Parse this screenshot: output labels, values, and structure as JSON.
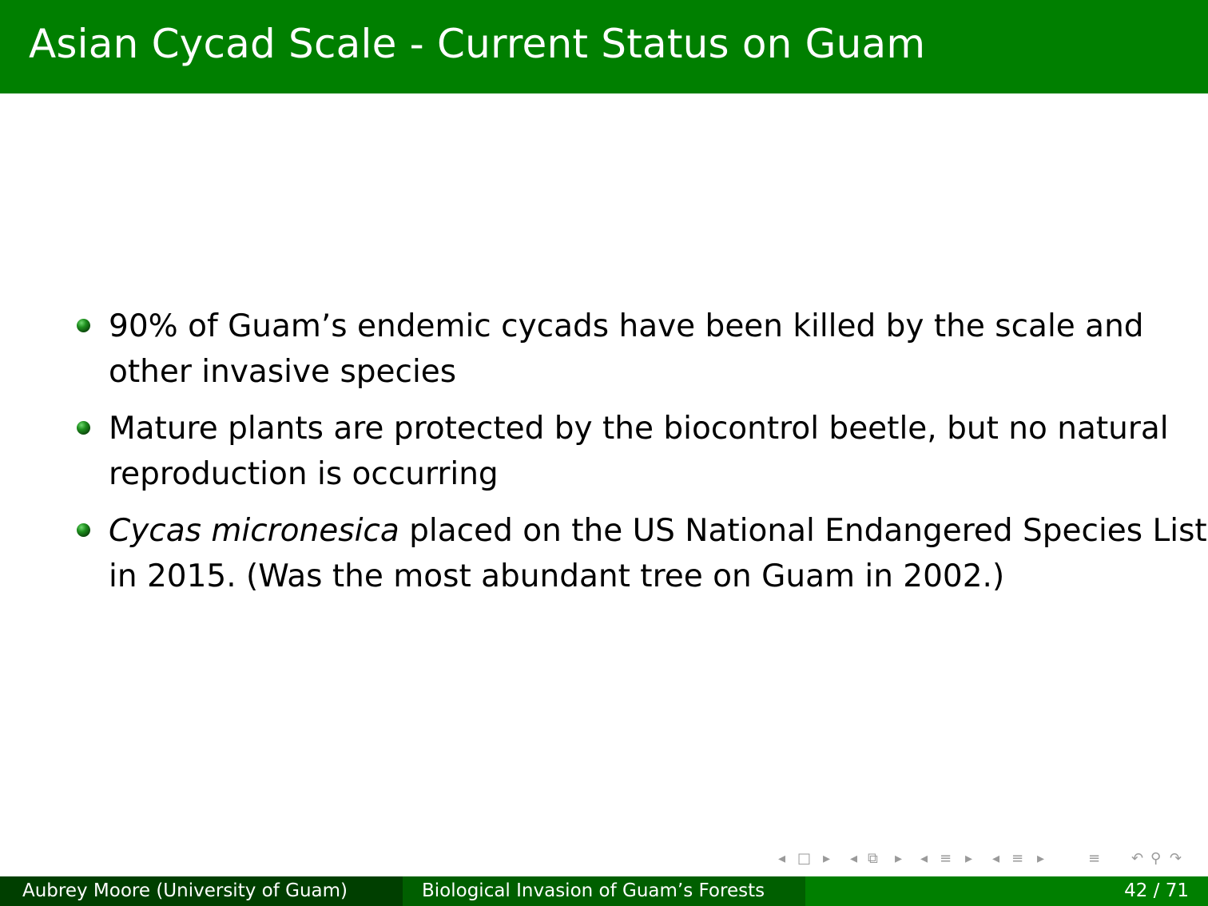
{
  "slide": {
    "title": "Asian Cycad Scale - Current Status on Guam",
    "bullets": [
      {
        "line1": "90% of Guam’s endemic cycads have been killed by the scale and",
        "line2": "other invasive species"
      },
      {
        "line1": "Mature plants are protected by the biocontrol beetle, but no natural",
        "line2": "reproduction is occurring"
      },
      {
        "italic": "Cycas micronesica",
        "line1_rest": " placed on the US National Endangered Species List",
        "line2": "in 2015. (Was the most abundant tree on Guam in 2002.)"
      }
    ]
  },
  "footer": {
    "author": "Aubrey Moore  (University of Guam)",
    "talk_title": "Biological Invasion of Guam’s Forests",
    "page": "42 / 71"
  },
  "nav_icons": [
    "arrow-left-icon",
    "frame-icon",
    "arrow-right-icon",
    "arrow-left-icon",
    "subsection-icon",
    "arrow-right-icon",
    "arrow-left-icon",
    "section-icon",
    "arrow-right-icon",
    "arrow-left-icon",
    "section-icon",
    "arrow-right-icon",
    "align-icon",
    "undo-icon",
    "search-icon",
    "redo-icon"
  ],
  "colors": {
    "header_green": "#007f00",
    "footer_dark": "#003f00",
    "footer_mid": "#005f00",
    "footer_light": "#007f00"
  }
}
